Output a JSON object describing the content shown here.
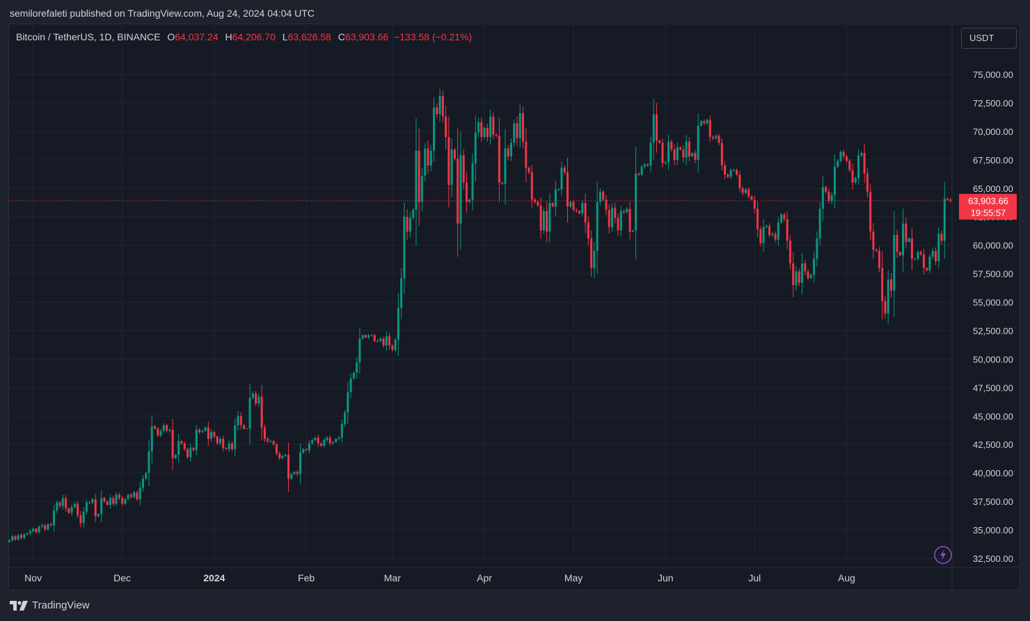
{
  "header": {
    "publish_line": "semilorefaleti published on TradingView.com, Aug 24, 2024 04:04 UTC"
  },
  "legend": {
    "symbol": "Bitcoin / TetherUS, 1D, BINANCE",
    "o_label": "O",
    "o_value": "64,037.24",
    "h_label": "H",
    "h_value": "64,206.70",
    "l_label": "L",
    "l_value": "63,626.58",
    "c_label": "C",
    "c_value": "63,903.66",
    "change": "−133.58 (−0.21%)"
  },
  "currency_button": "USDT",
  "price_tag": {
    "price": "63,903.66",
    "countdown": "19:55:57"
  },
  "footer": {
    "brand": "TradingView"
  },
  "colors": {
    "up": "#089981",
    "down": "#f23645",
    "background": "#161a25",
    "grid": "#232632"
  },
  "chart_data": {
    "type": "candlestick",
    "y_ticks": [
      "32,500.00",
      "35,000.00",
      "37,500.00",
      "40,000.00",
      "42,500.00",
      "45,000.00",
      "47,500.00",
      "50,000.00",
      "52,500.00",
      "55,000.00",
      "57,500.00",
      "60,000.00",
      "62,500.00",
      "65,000.00",
      "67,500.00",
      "70,000.00",
      "72,500.00",
      "75,000.00"
    ],
    "ylim": [
      32500,
      75000
    ],
    "x_ticks": [
      {
        "label": "Nov",
        "date": "2023-11-01",
        "bold": false
      },
      {
        "label": "Dec",
        "date": "2023-12-01",
        "bold": false
      },
      {
        "label": "2024",
        "date": "2024-01-01",
        "bold": true
      },
      {
        "label": "Feb",
        "date": "2024-02-01",
        "bold": false
      },
      {
        "label": "Mar",
        "date": "2024-03-01",
        "bold": false
      },
      {
        "label": "Apr",
        "date": "2024-04-01",
        "bold": false
      },
      {
        "label": "May",
        "date": "2024-05-01",
        "bold": false
      },
      {
        "label": "Jun",
        "date": "2024-06-01",
        "bold": false
      },
      {
        "label": "Jul",
        "date": "2024-07-01",
        "bold": false
      },
      {
        "label": "Aug",
        "date": "2024-08-01",
        "bold": false
      }
    ],
    "first_date": "2023-10-24",
    "last_close": 63903.66,
    "closes": [
      34100,
      34450,
      34150,
      34550,
      34300,
      34600,
      34700,
      34900,
      35100,
      34800,
      35300,
      35400,
      35050,
      35500,
      35400,
      36700,
      37400,
      37100,
      37800,
      36900,
      36500,
      37000,
      37300,
      36300,
      35600,
      36600,
      37400,
      37400,
      37700,
      36200,
      36400,
      37800,
      37500,
      37200,
      37800,
      37300,
      38100,
      37800,
      37300,
      37700,
      38100,
      37900,
      38300,
      37700,
      38700,
      39500,
      40000,
      41900,
      44100,
      43900,
      43300,
      43700,
      44200,
      43700,
      43800,
      41300,
      41600,
      42800,
      42600,
      42100,
      41400,
      42200,
      42000,
      43800,
      43600,
      43700,
      44000,
      43000,
      43600,
      43200,
      42600,
      43000,
      42200,
      42100,
      42600,
      42100,
      44200,
      45000,
      44200,
      43900,
      43900,
      46600,
      47000,
      46100,
      46700,
      44000,
      43000,
      42800,
      42800,
      42500,
      41700,
      41300,
      41500,
      41600,
      39500,
      39900,
      40100,
      39900,
      41800,
      42100,
      42000,
      42600,
      42900,
      43100,
      42600,
      42400,
      42900,
      43100,
      42600,
      42700,
      43000,
      43100,
      44300,
      45300,
      47100,
      48300,
      48800,
      49700,
      51800,
      52100,
      51900,
      52100,
      52100,
      51600,
      51600,
      51800,
      51200,
      52000,
      51200,
      50800,
      51700,
      54500,
      57100,
      62500,
      61200,
      62400,
      63100,
      68300,
      63800,
      66100,
      68500,
      67000,
      68300,
      72100,
      71500,
      73100,
      71300,
      69500,
      65300,
      68400,
      67600,
      61900,
      67900,
      65500,
      63800,
      64000,
      67200,
      69900,
      70800,
      69500,
      70300,
      69500,
      71300,
      69700,
      69600,
      65500,
      65400,
      68500,
      67800,
      69000,
      70700,
      69400,
      71600,
      69100,
      66800,
      66400,
      64000,
      63800,
      63500,
      61300,
      63000,
      61200,
      63700,
      63400,
      64900,
      64900,
      66800,
      66400,
      63400,
      63800,
      63100,
      63000,
      62800,
      63700,
      62000,
      60600,
      58000,
      59500,
      63800,
      64700,
      64000,
      63100,
      61600,
      63300,
      62400,
      61300,
      63000,
      62900,
      63200,
      61200,
      61300,
      66300,
      66200,
      66900,
      67100,
      67000,
      69000,
      71500,
      69200,
      69000,
      67200,
      67300,
      69100,
      68400,
      67500,
      68600,
      68400,
      67700,
      69100,
      67800,
      68100,
      67500,
      70500,
      70900,
      70700,
      71000,
      69500,
      69400,
      69600,
      69000,
      67000,
      66200,
      66000,
      66600,
      66600,
      66200,
      65000,
      64600,
      64900,
      64300,
      64000,
      63200,
      61400,
      60200,
      61600,
      61700,
      60900,
      61000,
      60500,
      62000,
      62700,
      62300,
      60400,
      58400,
      56500,
      57700,
      56700,
      58400,
      57700,
      57100,
      57400,
      58800,
      60600,
      63200,
      65100,
      64700,
      63900,
      64400,
      66900,
      67400,
      68200,
      67800,
      67400,
      66600,
      65500,
      65900,
      67900,
      68100,
      66300,
      64700,
      61200,
      59600,
      59500,
      58000,
      55100,
      54000,
      57000,
      56000,
      60900,
      59400,
      59100,
      61900,
      60300,
      60600,
      58800,
      58800,
      59400,
      59200,
      58000,
      57800,
      59000,
      59500,
      58600,
      61000,
      60400,
      64100,
      64000,
      63903.66
    ]
  }
}
